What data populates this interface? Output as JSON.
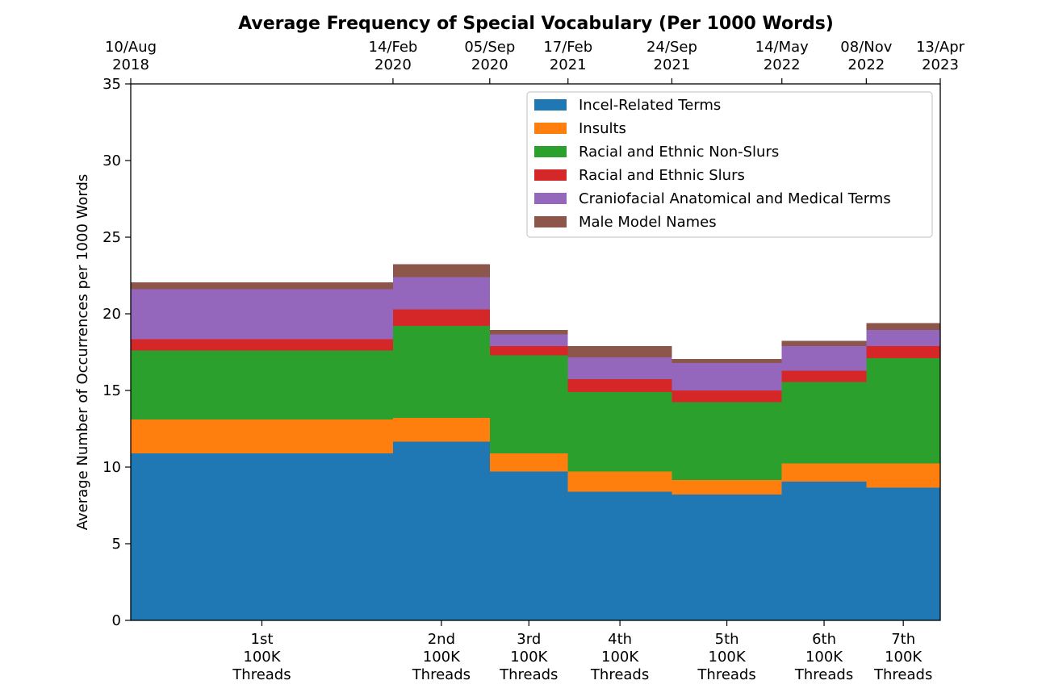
{
  "chart_data": {
    "type": "bar",
    "subtype": "stacked-variable-width",
    "title": "Average Frequency of Special Vocabulary (Per 1000 Words)",
    "ylabel": "Average Number of Occurrences per 1000 Words",
    "ylim": [
      0,
      35
    ],
    "yticks": [
      0,
      5,
      10,
      15,
      20,
      25,
      30,
      35
    ],
    "x_dates": [
      "2018-08-10",
      "2020-02-14",
      "2020-09-05",
      "2021-02-17",
      "2021-09-24",
      "2022-05-14",
      "2022-11-08",
      "2023-04-13"
    ],
    "top_tick_labels": [
      [
        "10/Aug",
        "2018"
      ],
      [
        "14/Feb",
        "2020"
      ],
      [
        "05/Sep",
        "2020"
      ],
      [
        "17/Feb",
        "2021"
      ],
      [
        "24/Sep",
        "2021"
      ],
      [
        "14/May",
        "2022"
      ],
      [
        "08/Nov",
        "2022"
      ],
      [
        "13/Apr",
        "2023"
      ]
    ],
    "categories": [
      [
        "1st",
        "100K",
        "Threads"
      ],
      [
        "2nd",
        "100K",
        "Threads"
      ],
      [
        "3rd",
        "100K",
        "Threads"
      ],
      [
        "4th",
        "100K",
        "Threads"
      ],
      [
        "5th",
        "100K",
        "Threads"
      ],
      [
        "6th",
        "100K",
        "Threads"
      ],
      [
        "7th",
        "100K",
        "Threads"
      ]
    ],
    "series": [
      {
        "name": "Incel-Related Terms",
        "color": "#1f77b4",
        "values": [
          10.9,
          11.65,
          9.7,
          8.4,
          8.2,
          9.05,
          8.65
        ]
      },
      {
        "name": "Insults",
        "color": "#ff7f0e",
        "values": [
          2.2,
          1.55,
          1.2,
          1.3,
          0.95,
          1.2,
          1.6
        ]
      },
      {
        "name": "Racial and Ethnic Non-Slurs",
        "color": "#2ca02c",
        "values": [
          4.5,
          6.0,
          6.4,
          5.2,
          5.1,
          5.3,
          6.85
        ]
      },
      {
        "name": "Racial and Ethnic Slurs",
        "color": "#d62728",
        "values": [
          0.75,
          1.1,
          0.6,
          0.85,
          0.75,
          0.75,
          0.8
        ]
      },
      {
        "name": "Craniofacial Anatomical and Medical Terms",
        "color": "#9467bd",
        "values": [
          3.25,
          2.1,
          0.75,
          1.4,
          1.8,
          1.6,
          1.05
        ]
      },
      {
        "name": "Male Model Names",
        "color": "#8c564b",
        "values": [
          0.45,
          0.85,
          0.3,
          0.75,
          0.25,
          0.35,
          0.45
        ]
      }
    ],
    "legend_position": "top-right",
    "grid": false
  }
}
